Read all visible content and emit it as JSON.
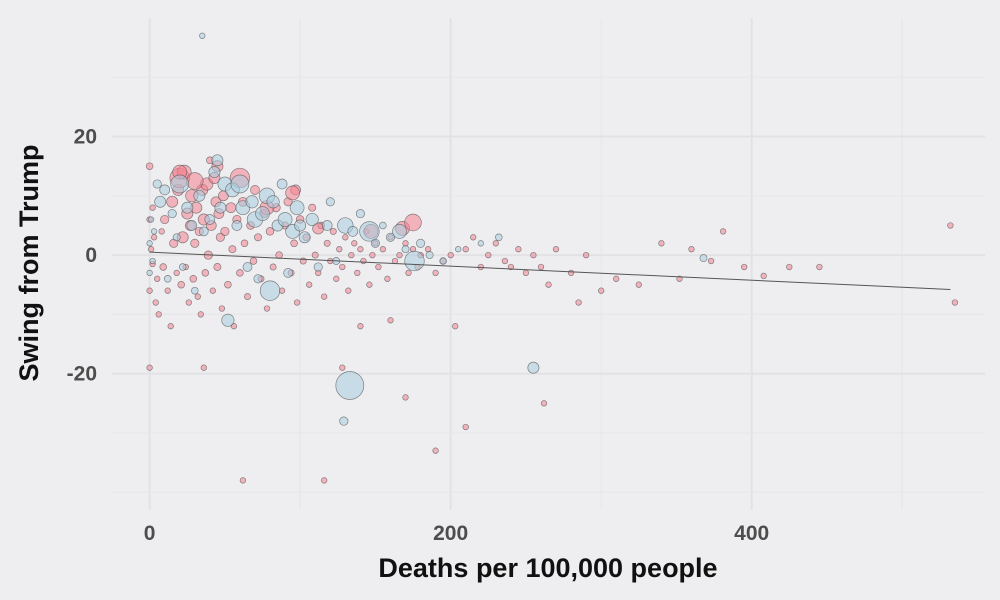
{
  "chart_data": {
    "type": "scatter",
    "title": "",
    "xlabel": "Deaths per 100,000 people",
    "ylabel": "Swing from Trump",
    "xlim": [
      -25,
      555
    ],
    "ylim": [
      -43,
      40
    ],
    "x_ticks": [
      0,
      200,
      400
    ],
    "y_ticks": [
      -20,
      0,
      20
    ],
    "x_tick_labels": [
      "0",
      "200",
      "400"
    ],
    "y_tick_labels": [
      "-20",
      "0",
      "20"
    ],
    "grid": true,
    "legend": "none",
    "trend_line": {
      "x": [
        0,
        532
      ],
      "y": [
        0.5,
        -5.8
      ]
    },
    "series": [
      {
        "color": "#f4828f",
        "points": [
          [
            2,
            -1.5,
            1
          ],
          [
            1,
            1,
            1
          ],
          [
            0,
            15,
            1.2
          ],
          [
            0,
            -19,
            1
          ],
          [
            0,
            6,
            1
          ],
          [
            0,
            -6,
            1
          ],
          [
            3,
            3,
            1
          ],
          [
            5,
            -4,
            1
          ],
          [
            2,
            8,
            1
          ],
          [
            4,
            -8,
            1
          ],
          [
            6,
            -10,
            1
          ],
          [
            8,
            4,
            1
          ],
          [
            9,
            -2,
            1.2
          ],
          [
            10,
            6,
            1.5
          ],
          [
            12,
            -6,
            1
          ],
          [
            14,
            -12,
            1
          ],
          [
            15,
            9,
            2
          ],
          [
            16,
            2,
            1.5
          ],
          [
            18,
            -3,
            1
          ],
          [
            19,
            11,
            2
          ],
          [
            20,
            13,
            3.5
          ],
          [
            21,
            -5,
            1.2
          ],
          [
            22,
            3,
            2
          ],
          [
            23,
            14,
            2.5
          ],
          [
            24,
            -2,
            1
          ],
          [
            25,
            7,
            2
          ],
          [
            26,
            -8,
            1
          ],
          [
            27,
            5,
            1.8
          ],
          [
            28,
            10,
            2.2
          ],
          [
            29,
            -4,
            1.2
          ],
          [
            30,
            2,
            1.5
          ],
          [
            31,
            8,
            2
          ],
          [
            32,
            -7,
            1
          ],
          [
            33,
            4,
            1.5
          ],
          [
            34,
            -10,
            1
          ],
          [
            35,
            11,
            2
          ],
          [
            36,
            6,
            2
          ],
          [
            37,
            -3,
            1.2
          ],
          [
            38,
            12,
            2.2
          ],
          [
            39,
            0,
            1.5
          ],
          [
            40,
            16,
            1.2
          ],
          [
            41,
            5,
            1.8
          ],
          [
            42,
            -6,
            1
          ],
          [
            43,
            13,
            2
          ],
          [
            44,
            9,
            1.8
          ],
          [
            45,
            -2,
            1.3
          ],
          [
            46,
            7,
            1.8
          ],
          [
            47,
            3,
            1.5
          ],
          [
            48,
            -9,
            1
          ],
          [
            49,
            10,
            1.8
          ],
          [
            50,
            4,
            1.5
          ],
          [
            52,
            -5,
            1.2
          ],
          [
            54,
            8,
            1.8
          ],
          [
            55,
            1,
            1.3
          ],
          [
            56,
            -12,
            1
          ],
          [
            58,
            6,
            1.5
          ],
          [
            60,
            -3,
            1.2
          ],
          [
            62,
            9,
            1.6
          ],
          [
            63,
            2,
            1.2
          ],
          [
            65,
            -7,
            1.1
          ],
          [
            67,
            5,
            1.4
          ],
          [
            69,
            -1,
            1.2
          ],
          [
            70,
            11,
            1.6
          ],
          [
            72,
            3,
            1.3
          ],
          [
            74,
            -4,
            1.1
          ],
          [
            76,
            7,
            1.5
          ],
          [
            78,
            -9,
            1
          ],
          [
            80,
            4,
            1.4
          ],
          [
            82,
            -2,
            1.1
          ],
          [
            84,
            8,
            1.5
          ],
          [
            86,
            0,
            1.2
          ],
          [
            88,
            -6,
            1
          ],
          [
            90,
            5,
            1.3
          ],
          [
            92,
            9,
            1.5
          ],
          [
            94,
            -3,
            1.1
          ],
          [
            96,
            2,
            1.2
          ],
          [
            97,
            11,
            1.8
          ],
          [
            98,
            -8,
            1
          ],
          [
            100,
            6,
            1.4
          ],
          [
            102,
            -1,
            1.1
          ],
          [
            104,
            3,
            1.2
          ],
          [
            106,
            -5,
            1
          ],
          [
            108,
            8,
            1.3
          ],
          [
            110,
            0,
            1.1
          ],
          [
            112,
            -3,
            1
          ],
          [
            114,
            5,
            1.2
          ],
          [
            116,
            -7,
            1
          ],
          [
            118,
            2,
            1.1
          ],
          [
            120,
            -1,
            1
          ],
          [
            122,
            4,
            1.1
          ],
          [
            124,
            -4,
            1
          ],
          [
            126,
            1,
            1
          ],
          [
            128,
            -2,
            1
          ],
          [
            130,
            3,
            1
          ],
          [
            132,
            -6,
            1
          ],
          [
            134,
            0,
            1
          ],
          [
            136,
            2,
            1
          ],
          [
            138,
            -3,
            1
          ],
          [
            140,
            1,
            1
          ],
          [
            142,
            -1,
            1
          ],
          [
            144,
            4,
            1
          ],
          [
            146,
            -5,
            1
          ],
          [
            148,
            0,
            1
          ],
          [
            150,
            2,
            1
          ],
          [
            152,
            -2,
            1
          ],
          [
            155,
            1,
            1
          ],
          [
            158,
            -4,
            1
          ],
          [
            160,
            3,
            1
          ],
          [
            163,
            -1,
            1
          ],
          [
            166,
            0,
            1
          ],
          [
            170,
            2,
            1
          ],
          [
            172,
            -3,
            1
          ],
          [
            175,
            1,
            1
          ],
          [
            178,
            -2,
            1
          ],
          [
            180,
            0,
            1
          ],
          [
            185,
            1,
            1
          ],
          [
            190,
            -3,
            1
          ],
          [
            195,
            -1,
            1
          ],
          [
            200,
            0,
            1
          ],
          [
            203,
            -12,
            1
          ],
          [
            210,
            1,
            1
          ],
          [
            215,
            3,
            1
          ],
          [
            220,
            -2,
            1
          ],
          [
            225,
            0,
            1
          ],
          [
            230,
            2,
            1
          ],
          [
            236,
            -1,
            1
          ],
          [
            240,
            -2,
            1
          ],
          [
            245,
            1,
            1
          ],
          [
            250,
            -3,
            1
          ],
          [
            255,
            0,
            1
          ],
          [
            260,
            -2,
            1
          ],
          [
            262,
            -25,
            1
          ],
          [
            265,
            -5,
            1
          ],
          [
            270,
            1,
            1
          ],
          [
            280,
            -3,
            1
          ],
          [
            285,
            -8,
            1
          ],
          [
            290,
            0,
            1
          ],
          [
            300,
            -6,
            1
          ],
          [
            310,
            -4,
            1
          ],
          [
            325,
            -5,
            1
          ],
          [
            340,
            2,
            1
          ],
          [
            352,
            -4,
            1
          ],
          [
            360,
            1,
            1
          ],
          [
            373,
            -1,
            1
          ],
          [
            381,
            4,
            1
          ],
          [
            395,
            -2,
            1
          ],
          [
            408,
            -3.5,
            1
          ],
          [
            425,
            -2,
            1
          ],
          [
            445,
            -2,
            1
          ],
          [
            532,
            5,
            1
          ],
          [
            535,
            -8,
            1
          ],
          [
            36,
            -19,
            1
          ],
          [
            62,
            -38,
            1
          ],
          [
            210,
            -29,
            1
          ],
          [
            116,
            -38,
            1
          ],
          [
            190,
            -33,
            1
          ],
          [
            170,
            -24,
            1
          ],
          [
            160,
            -11,
            1
          ],
          [
            140,
            -12,
            1
          ],
          [
            128,
            -19,
            1
          ],
          [
            168,
            4.5,
            2.5
          ],
          [
            175,
            5.5,
            3
          ],
          [
            147,
            4,
            2.5
          ],
          [
            95,
            10.5,
            2.5
          ],
          [
            112,
            4.5,
            2
          ],
          [
            60,
            13,
            3.5
          ],
          [
            30,
            12.5,
            3
          ],
          [
            20,
            14,
            2.5
          ],
          [
            45,
            15,
            2
          ],
          [
            78,
            8,
            2.5
          ]
        ]
      },
      {
        "color": "#a9cde0",
        "points": [
          [
            0,
            2,
            1
          ],
          [
            0,
            -3,
            1
          ],
          [
            1,
            6,
            1
          ],
          [
            2,
            -1,
            1
          ],
          [
            3,
            4,
            1
          ],
          [
            5,
            12,
            1.5
          ],
          [
            7,
            9,
            2
          ],
          [
            10,
            11,
            1.8
          ],
          [
            12,
            -4,
            1.2
          ],
          [
            15,
            7,
            1.5
          ],
          [
            18,
            3,
            1.3
          ],
          [
            20,
            12,
            3.2
          ],
          [
            22,
            -2,
            1.2
          ],
          [
            25,
            8,
            2
          ],
          [
            28,
            5,
            1.8
          ],
          [
            30,
            -6,
            1.2
          ],
          [
            33,
            10,
            2
          ],
          [
            36,
            4,
            1.6
          ],
          [
            40,
            6,
            1.8
          ],
          [
            43,
            14,
            2
          ],
          [
            45,
            16,
            2
          ],
          [
            47,
            8,
            2
          ],
          [
            50,
            12,
            2.5
          ],
          [
            52,
            -11,
            2.2
          ],
          [
            55,
            11,
            2.5
          ],
          [
            58,
            5,
            1.8
          ],
          [
            60,
            12,
            3.2
          ],
          [
            62,
            8,
            2.5
          ],
          [
            65,
            -2,
            1.6
          ],
          [
            68,
            9,
            2.2
          ],
          [
            70,
            6,
            2.8
          ],
          [
            72,
            -4,
            1.5
          ],
          [
            75,
            7,
            2.5
          ],
          [
            78,
            10,
            2.8
          ],
          [
            80,
            -6,
            3.5
          ],
          [
            82,
            9,
            2.2
          ],
          [
            85,
            5,
            2
          ],
          [
            88,
            12,
            1.8
          ],
          [
            90,
            6,
            2.5
          ],
          [
            92,
            -3,
            1.6
          ],
          [
            95,
            4,
            2.5
          ],
          [
            98,
            8,
            2.5
          ],
          [
            100,
            5,
            2
          ],
          [
            103,
            3,
            2
          ],
          [
            108,
            6,
            2.2
          ],
          [
            112,
            -2,
            1.5
          ],
          [
            118,
            5,
            1.8
          ],
          [
            120,
            9,
            1.5
          ],
          [
            124,
            -1,
            1.3
          ],
          [
            130,
            5,
            2.8
          ],
          [
            133,
            -22,
            5
          ],
          [
            135,
            4,
            1.8
          ],
          [
            140,
            7,
            1.5
          ],
          [
            146,
            4,
            3.5
          ],
          [
            150,
            2,
            1.5
          ],
          [
            155,
            5,
            1.2
          ],
          [
            160,
            3,
            1.5
          ],
          [
            166,
            4,
            2.5
          ],
          [
            170,
            1,
            1.3
          ],
          [
            176,
            -1,
            3.5
          ],
          [
            180,
            2,
            1.5
          ],
          [
            186,
            0,
            1.3
          ],
          [
            195,
            -1,
            1.2
          ],
          [
            205,
            1,
            1
          ],
          [
            220,
            2,
            1
          ],
          [
            232,
            3,
            1.2
          ],
          [
            255,
            -19,
            2
          ],
          [
            368,
            -0.5,
            1.3
          ],
          [
            35,
            37,
            1
          ],
          [
            129,
            -28,
            1.5
          ]
        ]
      }
    ]
  }
}
